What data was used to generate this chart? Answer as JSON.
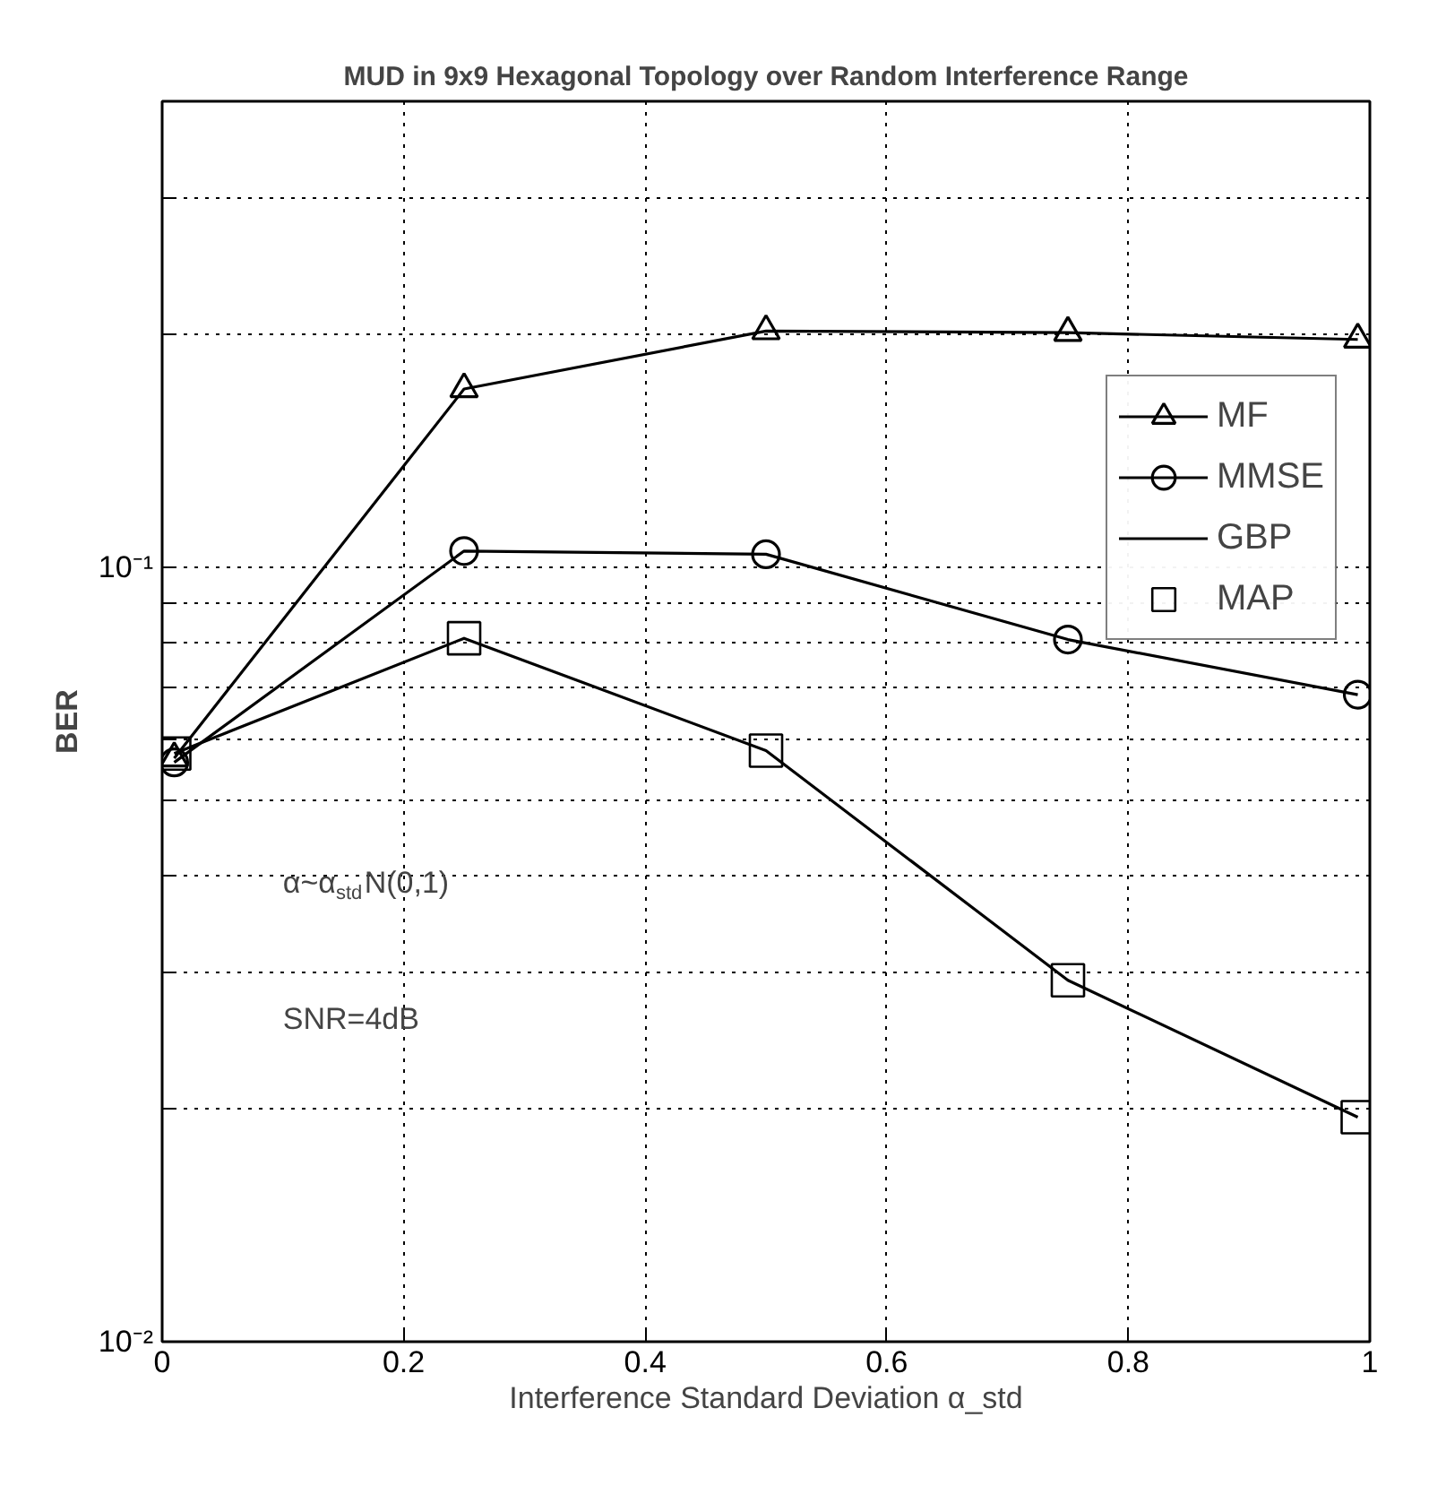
{
  "chart_data": {
    "type": "line",
    "title": "MUD in 9x9 Hexagonal Topology over Random Interference Range",
    "xlabel": "Interference Standard Deviation α_std",
    "ylabel": "BER",
    "x": [
      0.01,
      0.25,
      0.5,
      0.75,
      0.99
    ],
    "series": [
      {
        "name": "MF",
        "color": "#000000",
        "marker": "triangle",
        "values": [
          0.0567,
          0.17,
          0.202,
          0.201,
          0.197
        ]
      },
      {
        "name": "MMSE",
        "color": "#000000",
        "marker": "circle",
        "values": [
          0.056,
          0.105,
          0.104,
          0.0807,
          0.0685
        ]
      },
      {
        "name": "GBP",
        "color": "#000000",
        "marker": "none",
        "values": [
          0.0575,
          0.081,
          0.058,
          0.0293,
          0.0195
        ]
      },
      {
        "name": "MAP",
        "type": "scatter",
        "color": "#000000",
        "marker": "square",
        "values": [
          0.0575,
          0.081,
          0.058,
          0.0293,
          0.0195
        ]
      }
    ],
    "annotations": [
      "α~α$_{std}$N(0,1)",
      "SNR=4dB"
    ],
    "log": "y",
    "grid": true,
    "legend": "right",
    "line_style": "solid",
    "xlim": [
      0,
      1
    ],
    "xticks": [
      0,
      0.2,
      0.4,
      0.6,
      0.8,
      1
    ],
    "ylim": [
      0.01,
      0.4
    ],
    "yticks": [
      {
        "value": 0.01,
        "label": "10⁻²"
      },
      {
        "value": 0.02,
        "label": null
      },
      {
        "value": 0.03,
        "label": null
      },
      {
        "value": 0.04,
        "label": null
      },
      {
        "value": 0.05,
        "label": null
      },
      {
        "value": 0.06,
        "label": null
      },
      {
        "value": 0.07,
        "label": null
      },
      {
        "value": 0.08,
        "label": null
      },
      {
        "value": 0.09,
        "label": null
      },
      {
        "value": 0.1,
        "label": "10⁻¹"
      },
      {
        "value": 0.2,
        "label": null
      },
      {
        "value": 0.3,
        "label": null
      },
      {
        "value": 0.4,
        "label": null
      }
    ]
  }
}
